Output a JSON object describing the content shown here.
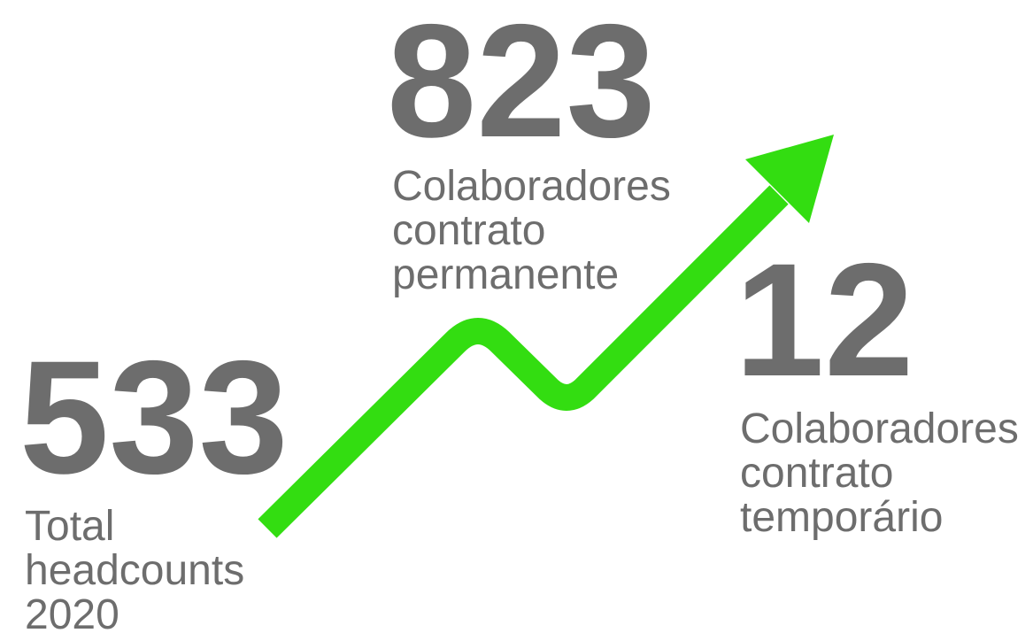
{
  "stats": [
    {
      "value": 533,
      "label": [
        "Total",
        "headcounts",
        "2020"
      ]
    },
    {
      "value": 823,
      "label": [
        "Colaboradores",
        "contrato",
        "permanente"
      ]
    },
    {
      "value": 12,
      "label": [
        "Colaboradores",
        "contrato",
        "temporário"
      ]
    }
  ]
}
